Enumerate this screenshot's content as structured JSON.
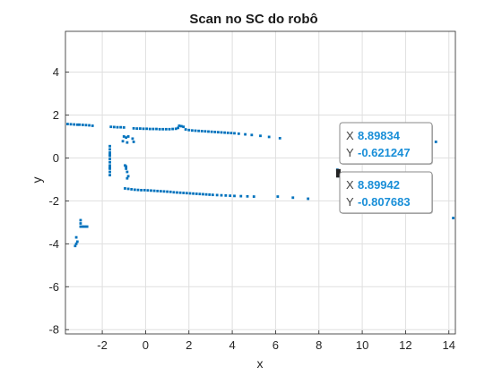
{
  "chart_data": {
    "type": "scatter",
    "title": "Scan no SC do robô",
    "xlabel": "x",
    "ylabel": "y",
    "xlim": [
      -3.7,
      14.3
    ],
    "ylim": [
      -8.2,
      5.9
    ],
    "xticks": [
      -2,
      0,
      2,
      4,
      6,
      8,
      10,
      12,
      14
    ],
    "yticks": [
      -8,
      -6,
      -4,
      -2,
      0,
      2,
      4
    ],
    "grid": true,
    "series": [
      {
        "color": "#0072bd",
        "x": [
          -3.6,
          -3.45,
          -3.3,
          -3.15,
          -3.05,
          -2.9,
          -2.75,
          -2.6,
          -2.45,
          -1.6,
          -1.45,
          -1.3,
          -1.15,
          -1.0,
          -0.55,
          -0.4,
          -0.25,
          -0.1,
          0.05,
          0.2,
          0.35,
          0.5,
          0.65,
          0.8,
          0.95,
          1.1,
          1.25,
          1.4,
          1.5,
          1.55,
          1.65,
          1.75,
          1.85,
          2.0,
          2.15,
          2.3,
          2.45,
          2.6,
          2.75,
          2.9,
          3.05,
          3.2,
          3.35,
          3.5,
          3.65,
          3.8,
          3.95,
          4.1,
          4.3,
          4.6,
          4.9,
          5.3,
          5.7,
          6.2,
          -1.65,
          -1.65,
          -1.65,
          -1.65,
          -1.65,
          -1.65,
          -1.65,
          -1.65,
          -1.65,
          -1.65,
          -1.65,
          -1.65,
          -1.0,
          -0.9,
          -0.8,
          -1.05,
          -0.85,
          -0.6,
          -0.55,
          -0.95,
          -0.9,
          -0.85,
          -0.8,
          -0.85,
          -0.9,
          -0.95,
          -0.8,
          -0.65,
          -0.5,
          -0.35,
          -0.2,
          -0.05,
          0.1,
          0.25,
          0.4,
          0.55,
          0.7,
          0.85,
          1.0,
          1.15,
          1.3,
          1.45,
          1.6,
          1.75,
          1.9,
          2.05,
          2.2,
          2.35,
          2.5,
          2.65,
          2.8,
          2.95,
          3.1,
          3.3,
          3.5,
          3.7,
          3.9,
          4.1,
          4.4,
          4.7,
          5.0,
          6.1,
          6.8,
          7.5,
          -3.0,
          -3.0,
          -3.0,
          -2.9,
          -2.8,
          -2.7,
          -3.2,
          -3.15,
          -3.2,
          -3.25,
          8.85,
          8.87,
          8.89,
          8.89,
          8.9,
          8.9,
          8.91,
          8.92,
          13.4,
          14.2
        ],
        "y": [
          1.58,
          1.57,
          1.56,
          1.55,
          1.55,
          1.54,
          1.53,
          1.52,
          1.5,
          1.45,
          1.44,
          1.43,
          1.43,
          1.42,
          1.38,
          1.37,
          1.37,
          1.36,
          1.36,
          1.35,
          1.35,
          1.35,
          1.34,
          1.34,
          1.34,
          1.34,
          1.35,
          1.36,
          1.4,
          1.5,
          1.48,
          1.45,
          1.33,
          1.3,
          1.28,
          1.27,
          1.26,
          1.25,
          1.24,
          1.23,
          1.22,
          1.21,
          1.2,
          1.19,
          1.18,
          1.17,
          1.16,
          1.15,
          1.13,
          1.1,
          1.07,
          1.03,
          0.98,
          0.92,
          0.55,
          0.4,
          0.25,
          0.1,
          -0.05,
          -0.2,
          -0.35,
          -0.5,
          -0.65,
          -0.8,
          0.15,
          -0.45,
          1.0,
          0.95,
          1.0,
          0.78,
          0.72,
          0.9,
          0.75,
          -0.35,
          -0.5,
          -0.65,
          -0.85,
          -0.95,
          -0.4,
          -1.42,
          -1.44,
          -1.46,
          -1.48,
          -1.49,
          -1.5,
          -1.5,
          -1.51,
          -1.52,
          -1.53,
          -1.54,
          -1.55,
          -1.56,
          -1.57,
          -1.58,
          -1.6,
          -1.61,
          -1.62,
          -1.63,
          -1.64,
          -1.65,
          -1.66,
          -1.67,
          -1.68,
          -1.69,
          -1.7,
          -1.71,
          -1.72,
          -1.73,
          -1.74,
          -1.75,
          -1.76,
          -1.77,
          -1.78,
          -1.79,
          -1.8,
          -1.8,
          -1.85,
          -1.9,
          -2.9,
          -3.05,
          -3.2,
          -3.2,
          -3.2,
          -3.2,
          -3.7,
          -3.9,
          -4.0,
          -4.1,
          -0.55,
          -0.59,
          -0.62,
          -0.67,
          -0.72,
          -0.76,
          -0.81,
          -0.85,
          0.75,
          -2.8
        ]
      }
    ],
    "datatips": [
      {
        "x_key": "X",
        "x_val": "8.89834",
        "y_key": "Y",
        "y_val": "-0.621247",
        "px": 8.89834,
        "py": -0.621247
      },
      {
        "x_key": "X",
        "x_val": "8.89942",
        "y_key": "Y",
        "y_val": "-0.807683",
        "px": 8.89942,
        "py": -0.807683
      }
    ]
  }
}
